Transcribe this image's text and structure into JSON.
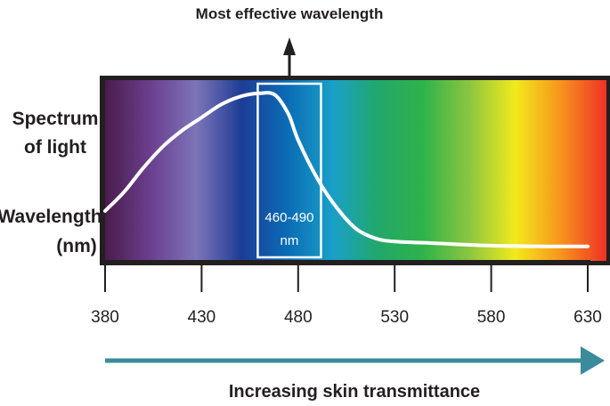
{
  "callout": {
    "label": "Most effective wavelength"
  },
  "row_labels": {
    "spectrum_line1": "Spectrum",
    "spectrum_line2": "of light",
    "wavelength_line1": "Wavelength",
    "wavelength_line2": "(nm)"
  },
  "highlight": {
    "line1": "460-490",
    "line2": "nm",
    "range": [
      460,
      490
    ]
  },
  "axis": {
    "min": 380,
    "max": 630,
    "ticks": [
      "380",
      "430",
      "480",
      "530",
      "580",
      "630"
    ]
  },
  "bottom_arrow": {
    "label": "Increasing skin transmittance",
    "color": "#3a8b9c"
  },
  "spectrum_colors": [
    "#4a1c4d",
    "#6b3f8f",
    "#7d74b8",
    "#1d3d96",
    "#0a6cb5",
    "#1aa0c8",
    "#21a86a",
    "#2fb34a",
    "#8cc63f",
    "#f2ea1b",
    "#f7941d",
    "#ee3124"
  ],
  "curve": {
    "wavelengths": [
      380,
      390,
      400,
      410,
      420,
      430,
      440,
      450,
      460,
      468,
      475,
      480,
      490,
      500,
      510,
      520,
      530,
      550,
      580,
      610,
      630
    ],
    "levels": [
      0.26,
      0.38,
      0.53,
      0.66,
      0.76,
      0.84,
      0.92,
      0.97,
      0.99,
      0.98,
      0.86,
      0.7,
      0.46,
      0.28,
      0.15,
      0.09,
      0.07,
      0.06,
      0.045,
      0.04,
      0.04
    ]
  }
}
